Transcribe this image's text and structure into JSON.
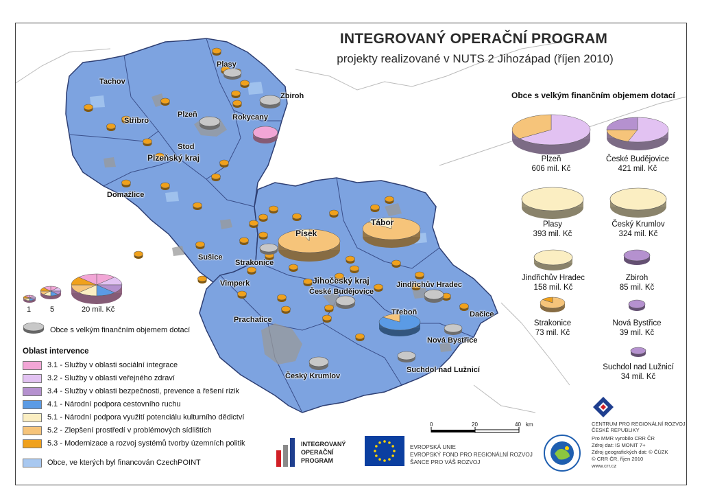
{
  "title": "INTEGROVANÝ OPERAČNÍ PROGRAM",
  "subtitle": "projekty realizované v NUTS 2 Jihozápad (říjen 2010)",
  "colors": {
    "map_fill": "#7da3e0",
    "map_border": "#3a4f8a",
    "cat_3_1": "#f2a6d6",
    "cat_3_2": "#e2c2f2",
    "cat_3_4": "#b591cf",
    "cat_4_1": "#5b9be5",
    "cat_5_1": "#fbeec2",
    "cat_5_2": "#f6c47a",
    "cat_5_3": "#f0a11c",
    "czechpoint": "#a8c8f0",
    "big_commune": "#c8c8c8"
  },
  "panel": {
    "title": "Obce s velkým finančním objemem dotací",
    "items": [
      {
        "name": "Plzeň",
        "value": "606 mil. Kč"
      },
      {
        "name": "České Budějovice",
        "value": "421 mil. Kč"
      },
      {
        "name": "Plasy",
        "value": "393 mil. Kč"
      },
      {
        "name": "Český Krumlov",
        "value": "324 mil. Kč"
      },
      {
        "name": "Jindřichův Hradec",
        "value": "158 mil. Kč"
      },
      {
        "name": "Zbiroh",
        "value": "85 mil. Kč"
      },
      {
        "name": "Strakonice",
        "value": "73 mil. Kč"
      },
      {
        "name": "Nová Bystřice",
        "value": "39 mil. Kč"
      },
      {
        "name": "Suchdol nad Lužnicí",
        "value": "34 mil. Kč"
      }
    ]
  },
  "map_labels": {
    "plasy": "Plasy",
    "zbiroh": "Zbiroh",
    "tachov": "Tachov",
    "plzen": "Plzeň",
    "rokycany": "Rokycany",
    "stribro": "Stříbro",
    "stod": "Stod",
    "plzensky_kraj": "Plzeňský kraj",
    "domazlice": "Domažlice",
    "susice": "Sušice",
    "strakonice": "Strakonice",
    "pisek": "Písek",
    "tabor": "Tábor",
    "jihocesky_kraj": "Jihočeský kraj",
    "ceske_budejovice": "České Budějovice",
    "jindrichuv_hradec": "Jindřichův Hradec",
    "vimperk": "Vimperk",
    "prachatice": "Prachatice",
    "trebon": "Třeboň",
    "dacice": "Dačice",
    "nova_bystrice": "Nová Bystřice",
    "suchdol": "Suchdol nad Lužnicí",
    "cesky_krumlov": "Český Krumlov"
  },
  "size_legend": {
    "s1": "1",
    "s5": "5",
    "s20": "20 mil. Kč"
  },
  "legend": {
    "big_commune": "Obce s velkým finančním objemem dotací",
    "title": "Oblast intervence",
    "items": [
      {
        "label": "3.1 - Služby v oblasti sociální integrace",
        "color": "#f2a6d6"
      },
      {
        "label": "3.2 - Služby v oblasti veřejného zdraví",
        "color": "#e2c2f2"
      },
      {
        "label": "3.4 - Služby v oblasti bezpečnosti, prevence a řešení rizik",
        "color": "#b591cf"
      },
      {
        "label": "4.1 - Národní podpora cestovního ruchu",
        "color": "#5b9be5"
      },
      {
        "label": "5.1 - Národní podpora využití potenciálu kulturního dědictví",
        "color": "#fbeec2"
      },
      {
        "label": "5.2 - Zlepšení prostředí v problémových sídlištích",
        "color": "#f6c47a"
      },
      {
        "label": "5.3 - Modernizace a rozvoj systémů tvorby územních politik",
        "color": "#f0a11c"
      }
    ],
    "czechpoint": "Obce, ve kterých byl financován CzechPOINT"
  },
  "scale": {
    "t0": "0",
    "t20": "20",
    "t40": "40",
    "unit": "km"
  },
  "logos": {
    "iop_lines": [
      "INTEGROVANÝ",
      "OPERAČNÍ",
      "PROGRAM"
    ],
    "eu_lines": [
      "EVROPSKÁ UNIE",
      "EVROPSKÝ FOND PRO REGIONÁLNÍ ROZVOJ",
      "ŠANCE PRO VÁŠ ROZVOJ"
    ],
    "crr_lines": [
      "CENTRUM PRO REGIONÁLNÍ ROZVOJ",
      "ČESKÉ REPUBLIKY"
    ]
  },
  "credits": [
    "Pro MMR vyrobilo CRR ČR",
    "Zdroj dat: IS MONIT 7+",
    "Zdroj geografických dat: © ČÚZK",
    "© CRR ČR, říjen 2010",
    "www.crr.cz"
  ]
}
